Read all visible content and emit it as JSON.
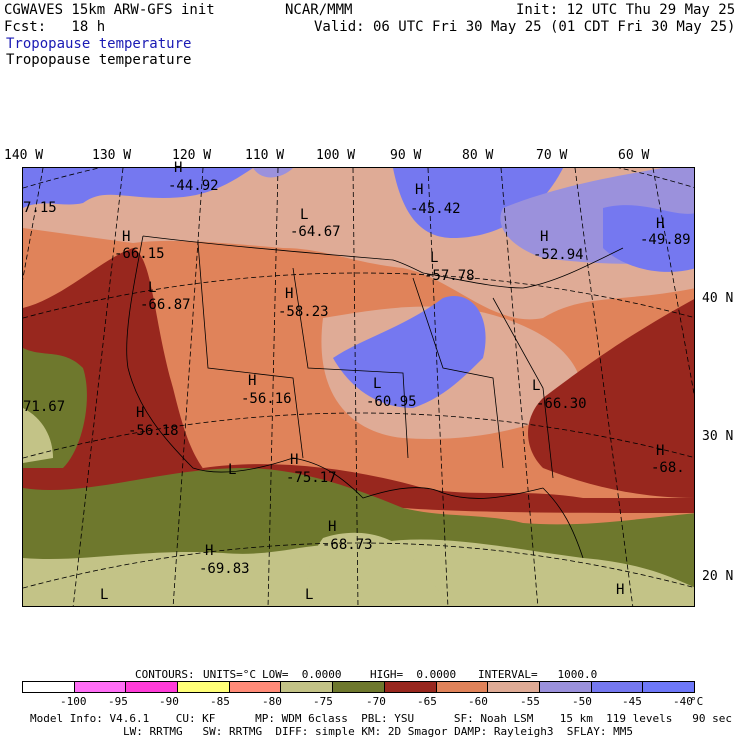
{
  "header": {
    "left_line1": "CGWAVES 15km ARW-GFS init",
    "center_line1": "NCAR/MMM",
    "right_line1": "Init: 12 UTC Thu 29 May 25",
    "left_line2": "Fcst:   18 h",
    "right_line2": "Valid: 06 UTC Fri 30 May 25 (01 CDT Fri 30 May 25)",
    "field_title_blue": "Tropopause temperature",
    "field_title_black": "Tropopause temperature"
  },
  "map": {
    "longitude_labels": [
      "140 W",
      "130 W",
      "120 W",
      "110 W",
      "100 W",
      "90 W",
      "80 W",
      "70 W",
      "60 W"
    ],
    "latitude_labels": [
      "40 N",
      "30 N",
      "20 N"
    ],
    "markers": [
      {
        "type": "H",
        "value": "-44.92"
      },
      {
        "type": "L",
        "value": "-64.67"
      },
      {
        "type": "H",
        "value": "-45.42"
      },
      {
        "type": "H",
        "value": "-52.94"
      },
      {
        "type": "H",
        "value": "-49.89"
      },
      {
        "type": "H",
        "value": "-66.15"
      },
      {
        "type": "L",
        "value": "-66.87"
      },
      {
        "type": "H",
        "value": "-58.23"
      },
      {
        "type": "L",
        "value": "-57.78"
      },
      {
        "type": "H",
        "value": "-56.16"
      },
      {
        "type": "L",
        "value": "-60.95"
      },
      {
        "type": "L",
        "value": "-66.30"
      },
      {
        "type": "H",
        "value": "-56.18"
      },
      {
        "type": "H",
        "value": "-75.17"
      },
      {
        "type": "H",
        "value": "-68.73"
      },
      {
        "type": "H",
        "value": "-69.83"
      },
      {
        "type": "H",
        "value": "-68."
      },
      {
        "type": "",
        "value": "7.15"
      },
      {
        "type": "",
        "value": "71.67"
      },
      {
        "type": "L",
        "value": ""
      },
      {
        "type": "L",
        "value": ""
      },
      {
        "type": "L",
        "value": ""
      },
      {
        "type": "H",
        "value": ""
      }
    ]
  },
  "contours": {
    "label": "CONTOURS:",
    "units": "UNITS=°C",
    "low": "LOW=  0.0000",
    "high": "HIGH=  0.0000",
    "interval": "INTERVAL=   1000.0"
  },
  "colorbar": {
    "colors": [
      "#ffffff",
      "#ff6ef5",
      "#ff3cd8",
      "#ffff78",
      "#ff8b78",
      "#c3c387",
      "#6e782d",
      "#98271e",
      "#e0835a",
      "#dfab96",
      "#9b91dc",
      "#7578f0",
      "#6e78f8"
    ],
    "labels": [
      "-100",
      "-95",
      "-90",
      "-85",
      "-80",
      "-75",
      "-70",
      "-65",
      "-60",
      "-55",
      "-50",
      "-45",
      "-40",
      "°C"
    ]
  },
  "footer": {
    "line1": "Model Info: V4.6.1    CU: KF      MP: WDM 6class  PBL: YSU      SF: Noah LSM    15 km  119 levels   90 sec",
    "line2": "LW: RRTMG   SW: RRTMG  DIFF: simple KM: 2D Smagor DAMP: Rayleigh3  SFLAY: MM5"
  }
}
